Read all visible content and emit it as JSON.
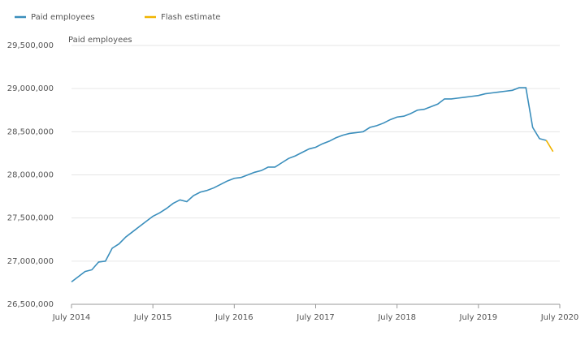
{
  "chart_data": {
    "type": "line",
    "y_label": "Paid employees",
    "x": [
      "2014-07",
      "2014-08",
      "2014-09",
      "2014-10",
      "2014-11",
      "2014-12",
      "2015-01",
      "2015-02",
      "2015-03",
      "2015-04",
      "2015-05",
      "2015-06",
      "2015-07",
      "2015-08",
      "2015-09",
      "2015-10",
      "2015-11",
      "2015-12",
      "2016-01",
      "2016-02",
      "2016-03",
      "2016-04",
      "2016-05",
      "2016-06",
      "2016-07",
      "2016-08",
      "2016-09",
      "2016-10",
      "2016-11",
      "2016-12",
      "2017-01",
      "2017-02",
      "2017-03",
      "2017-04",
      "2017-05",
      "2017-06",
      "2017-07",
      "2017-08",
      "2017-09",
      "2017-10",
      "2017-11",
      "2017-12",
      "2018-01",
      "2018-02",
      "2018-03",
      "2018-04",
      "2018-05",
      "2018-06",
      "2018-07",
      "2018-08",
      "2018-09",
      "2018-10",
      "2018-11",
      "2018-12",
      "2019-01",
      "2019-02",
      "2019-03",
      "2019-04",
      "2019-05",
      "2019-06",
      "2019-07",
      "2019-08",
      "2019-09",
      "2019-10",
      "2019-11",
      "2019-12",
      "2020-01",
      "2020-02",
      "2020-03",
      "2020-04",
      "2020-05",
      "2020-06"
    ],
    "series": [
      {
        "name": "Paid employees",
        "color": "#3a8ebc",
        "values": [
          26760000,
          26820000,
          26880000,
          26900000,
          26990000,
          27000000,
          27150000,
          27200000,
          27280000,
          27340000,
          27400000,
          27460000,
          27520000,
          27560000,
          27610000,
          27670000,
          27710000,
          27690000,
          27760000,
          27800000,
          27820000,
          27850000,
          27890000,
          27930000,
          27960000,
          27970000,
          28000000,
          28030000,
          28050000,
          28090000,
          28090000,
          28140000,
          28190000,
          28220000,
          28260000,
          28300000,
          28320000,
          28360000,
          28390000,
          28430000,
          28460000,
          28480000,
          28490000,
          28500000,
          28550000,
          28570000,
          28600000,
          28640000,
          28670000,
          28680000,
          28710000,
          28750000,
          28760000,
          28790000,
          28820000,
          28880000,
          28880000,
          28890000,
          28900000,
          28910000,
          28920000,
          28940000,
          28950000,
          28960000,
          28970000,
          28980000,
          29010000,
          29010000,
          28550000,
          28420000,
          28400000,
          null
        ]
      },
      {
        "name": "Flash estimate",
        "color": "#f0b400",
        "values": [
          null,
          null,
          null,
          null,
          null,
          null,
          null,
          null,
          null,
          null,
          null,
          null,
          null,
          null,
          null,
          null,
          null,
          null,
          null,
          null,
          null,
          null,
          null,
          null,
          null,
          null,
          null,
          null,
          null,
          null,
          null,
          null,
          null,
          null,
          null,
          null,
          null,
          null,
          null,
          null,
          null,
          null,
          null,
          null,
          null,
          null,
          null,
          null,
          null,
          null,
          null,
          null,
          null,
          null,
          null,
          null,
          null,
          null,
          null,
          null,
          null,
          null,
          null,
          null,
          null,
          null,
          null,
          null,
          null,
          null,
          28400000,
          28270000
        ]
      }
    ],
    "xlim": [
      "2014-07",
      "2020-07"
    ],
    "xticks": [
      {
        "value": "2014-07",
        "label": "July 2014"
      },
      {
        "value": "2015-07",
        "label": "July 2015"
      },
      {
        "value": "2016-07",
        "label": "July 2016"
      },
      {
        "value": "2017-07",
        "label": "July 2017"
      },
      {
        "value": "2018-07",
        "label": "July 2018"
      },
      {
        "value": "2019-07",
        "label": "July 2019"
      },
      {
        "value": "2020-07",
        "label": "July 2020"
      }
    ],
    "ylim": [
      26500000,
      29500000
    ],
    "yticks": [
      {
        "value": 26500000,
        "label": "26,500,000"
      },
      {
        "value": 27000000,
        "label": "27,000,000"
      },
      {
        "value": 27500000,
        "label": "27,500,000"
      },
      {
        "value": 28000000,
        "label": "28,000,000"
      },
      {
        "value": 28500000,
        "label": "28,500,000"
      },
      {
        "value": 29000000,
        "label": "29,000,000"
      },
      {
        "value": 29500000,
        "label": "29,500,000"
      }
    ],
    "grid": true
  }
}
